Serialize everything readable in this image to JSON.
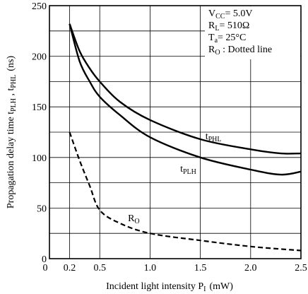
{
  "chart_data": {
    "type": "line",
    "xlabel": "Incident light intensity P",
    "xlabel_sub": "I",
    "xlabel_unit": "(mW)",
    "ylabel": "Propagation delay time t",
    "ylabel_sub1": "PLH",
    "ylabel_sep": " , t",
    "ylabel_sub2": "PHL",
    "ylabel_unit": "(ns)",
    "xlim": [
      0,
      2.5
    ],
    "ylim": [
      0,
      250
    ],
    "x_ticks": [
      0,
      0.2,
      0.5,
      1.0,
      1.5,
      2.0,
      2.5
    ],
    "x_tick_labels": [
      "0",
      "0.2",
      "0.5",
      "1.0",
      "1.5",
      "2.0",
      "2.5"
    ],
    "y_ticks": [
      0,
      50,
      100,
      150,
      200,
      250
    ],
    "y_tick_labels": [
      "0",
      "50",
      "100",
      "150",
      "200",
      "250"
    ],
    "x_grid": [
      0.2,
      0.5,
      1.0,
      1.5,
      2.0
    ],
    "y_grid": [
      25,
      50,
      75,
      100,
      125,
      150,
      175,
      200,
      225
    ],
    "grid": true,
    "legend_placement": "top-right",
    "conditions": [
      {
        "main": "V",
        "sub": "CC",
        "rest": "= 5.0V"
      },
      {
        "main": "R",
        "sub": "L",
        "rest": "= 510Ω"
      },
      {
        "main": "T",
        "sub": "a",
        "rest": "= 25°C"
      },
      {
        "main": "R",
        "sub": "O",
        "rest": " : Dotted line"
      }
    ],
    "series": [
      {
        "label_main": "t",
        "label_sub": "PHL",
        "style": "solid",
        "label_at": [
          1.55,
          118
        ],
        "x": [
          0.2,
          0.3,
          0.4,
          0.5,
          0.7,
          1.0,
          1.5,
          2.0,
          2.3,
          2.5
        ],
        "y": [
          232,
          205,
          188,
          175,
          155,
          137,
          118,
          108,
          104,
          104
        ]
      },
      {
        "label_main": "t",
        "label_sub": "PLH",
        "style": "solid",
        "label_at": [
          1.3,
          86
        ],
        "x": [
          0.2,
          0.3,
          0.4,
          0.5,
          0.7,
          1.0,
          1.5,
          2.0,
          2.3,
          2.5
        ],
        "y": [
          232,
          195,
          175,
          160,
          142,
          120,
          100,
          88,
          83,
          86
        ]
      },
      {
        "label_main": "R",
        "label_sub": "O",
        "style": "dashed",
        "label_at": [
          0.78,
          37
        ],
        "x": [
          0.2,
          0.3,
          0.4,
          0.5,
          0.7,
          1.0,
          1.5,
          2.0,
          2.5
        ],
        "y": [
          125,
          97,
          72,
          48,
          35,
          25,
          18,
          12,
          8
        ]
      }
    ]
  }
}
